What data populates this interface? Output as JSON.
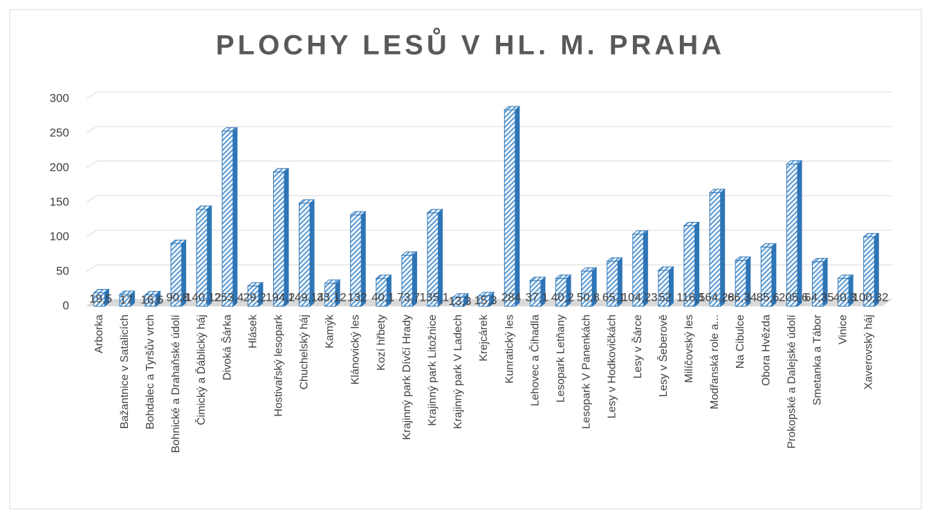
{
  "chart_data": {
    "type": "bar",
    "title": "PLOCHY LESŮ V HL. M. PRAHA",
    "categories": [
      "Arborka",
      "Bažantnice v Satalicích",
      "Bohdalec a Tyršův vrch",
      "Bohnické a Drahaňské údolí",
      "Čimický a Ďáblický háj",
      "Divoká Šárka",
      "Hlásek",
      "Hostivařský lesopark",
      "Chuchelský háj",
      "Kamýk",
      "Klánovický les",
      "Kozí hřbety",
      "Krajinný park Dívčí Hrady",
      "Krajinný park Litožnice",
      "Krajinný park V Ladech",
      "Krejcárek",
      "Kunratický les",
      "Lehovec a Čihadla",
      "Lesopark Letňany",
      "Lesopark V Panenkách",
      "Lesy v Hodkovičkách",
      "Lesy v Šárce",
      "Lesy v Šeberově",
      "Milíčovský les",
      "Modřanská role a...",
      "Na Cibulce",
      "Obora Hvězda",
      "Prokopské a Dalejské údolí",
      "Smetanka a Tábor",
      "Vinice",
      "Xaverovský háj"
    ],
    "values": [
      19.5,
      17,
      16.6,
      90.8,
      140.12,
      253.4,
      29.2,
      194.2,
      149.14,
      33.12,
      132,
      40.1,
      73.7,
      135.1,
      13.3,
      15.3,
      284,
      37.1,
      40.2,
      50.8,
      65.1,
      104.23,
      52,
      116.5,
      164.28,
      66.34,
      85.6,
      205.6,
      64.35,
      40.3,
      100.32
    ],
    "value_labels": [
      "19,5",
      "17",
      "16,6",
      "90,8",
      "140,12",
      "253,4",
      "29,2",
      "194,2",
      "149,14",
      "33,12",
      "132",
      "40,1",
      "73,7",
      "135,1",
      "13,3",
      "15,3",
      "284",
      "37,1",
      "40,2",
      "50,8",
      "65,1",
      "104,23",
      "52",
      "116,5",
      "164,28",
      "66,34",
      "85,6",
      "205,6",
      "64,35",
      "40,3",
      "100,32"
    ],
    "color": "#5b9bd5",
    "ylim": [
      0,
      300
    ],
    "yticks": [
      0,
      50,
      100,
      150,
      200,
      250,
      300
    ],
    "grid": true
  }
}
